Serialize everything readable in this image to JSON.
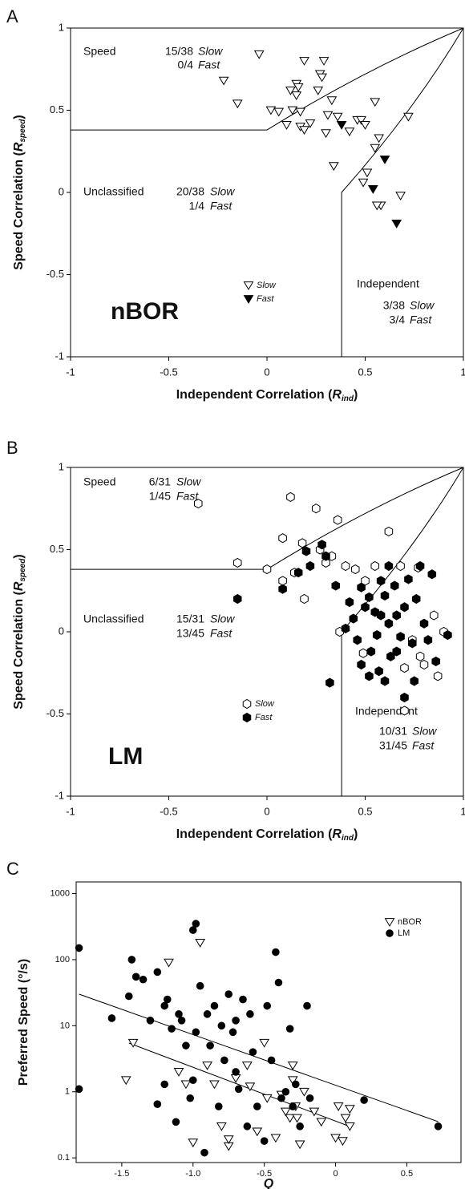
{
  "chart_data": [
    {
      "type": "scatter",
      "panel": "A",
      "label": "nBOR",
      "x_label": {
        "text": "Independent Correlation (",
        "var": "R",
        "sub": "ind",
        "close": ")"
      },
      "y_label": {
        "text": "Speed Correlation (",
        "var": "R",
        "sub": "speed",
        "close": ")"
      },
      "xlim": [
        -1,
        1
      ],
      "ylim": [
        -1,
        1
      ],
      "xticks": [
        -1,
        -0.5,
        0,
        0.5,
        1
      ],
      "yticks": [
        -1,
        -0.5,
        0,
        0.5,
        1
      ],
      "groups": [
        {
          "label": "Speed",
          "counts": [
            "15/38",
            "0/4"
          ]
        },
        {
          "label": "Unclassified",
          "counts": [
            "20/38",
            "1/4"
          ]
        },
        {
          "label": "Independent",
          "counts": [
            "3/38",
            "3/4"
          ]
        }
      ],
      "series": [
        {
          "name": "Slow",
          "marker": "triangle",
          "color": "#ffffff",
          "x": [
            -0.04,
            -0.22,
            -0.15,
            0.02,
            0.06,
            0.1,
            0.12,
            0.15,
            0.16,
            0.15,
            0.13,
            0.17,
            0.19,
            0.17,
            0.19,
            0.22,
            0.27,
            0.28,
            0.29,
            0.26,
            0.31,
            0.33,
            0.36,
            0.3,
            0.34,
            0.42,
            0.46,
            0.48,
            0.5,
            0.55,
            0.55,
            0.57,
            0.51,
            0.49,
            0.58,
            0.56,
            0.68,
            0.72
          ],
          "values": [
            0.84,
            0.68,
            0.54,
            0.5,
            0.49,
            0.41,
            0.62,
            0.66,
            0.64,
            0.59,
            0.5,
            0.49,
            0.8,
            0.4,
            0.38,
            0.42,
            0.72,
            0.7,
            0.8,
            0.62,
            0.47,
            0.56,
            0.46,
            0.36,
            0.16,
            0.37,
            0.44,
            0.44,
            0.41,
            0.55,
            0.27,
            0.33,
            0.12,
            0.06,
            -0.08,
            -0.08,
            -0.02,
            0.46
          ]
        },
        {
          "name": "Fast",
          "marker": "triangle",
          "color": "#000000",
          "x": [
            0.38,
            0.6,
            0.54,
            0.66
          ],
          "values": [
            0.41,
            0.2,
            0.02,
            -0.19
          ]
        }
      ]
    },
    {
      "type": "scatter",
      "panel": "B",
      "label": "LM",
      "x_label": {
        "text": "Independent Correlation (",
        "var": "R",
        "sub": "ind",
        "close": ")"
      },
      "y_label": {
        "text": "Speed Correlation (",
        "var": "R",
        "sub": "speed",
        "close": ")"
      },
      "xlim": [
        -1,
        1
      ],
      "ylim": [
        -1,
        1
      ],
      "xticks": [
        -1,
        -0.5,
        0,
        0.5,
        1
      ],
      "yticks": [
        -1,
        -0.5,
        0,
        0.5,
        1
      ],
      "groups": [
        {
          "label": "Speed",
          "counts": [
            "6/31",
            "1/45"
          ]
        },
        {
          "label": "Unclassified",
          "counts": [
            "15/31",
            "13/45"
          ]
        },
        {
          "label": "Independent",
          "counts": [
            "10/31",
            "31/45"
          ]
        }
      ],
      "series": [
        {
          "name": "Slow",
          "marker": "hexagon",
          "color": "#ffffff",
          "x": [
            -0.35,
            -0.15,
            0,
            0.08,
            0.08,
            0.12,
            0.14,
            0.18,
            0.19,
            0.25,
            0.27,
            0.3,
            0.33,
            0.36,
            0.4,
            0.45,
            0.5,
            0.55,
            0.62,
            0.68,
            0.77,
            0.85,
            0.9,
            0.87,
            0.8,
            0.78,
            0.7,
            0.7,
            0.74,
            0.49,
            0.37
          ],
          "values": [
            0.78,
            0.42,
            0.38,
            0.31,
            0.57,
            0.82,
            0.36,
            0.54,
            0.2,
            0.75,
            0.5,
            0.42,
            0.46,
            0.68,
            0.4,
            0.38,
            0.31,
            0.4,
            0.61,
            0.4,
            0.39,
            0.1,
            0,
            -0.27,
            -0.2,
            -0.15,
            -0.48,
            -0.22,
            -0.05,
            -0.13,
            0
          ]
        },
        {
          "name": "Fast",
          "marker": "hexagon",
          "color": "#000000",
          "x": [
            -0.15,
            0.2,
            0.22,
            0.16,
            0.08,
            0.28,
            0.3,
            0.35,
            0.32,
            0.42,
            0.48,
            0.52,
            0.5,
            0.44,
            0.4,
            0.46,
            0.55,
            0.58,
            0.6,
            0.62,
            0.56,
            0.53,
            0.52,
            0.57,
            0.6,
            0.63,
            0.65,
            0.7,
            0.72,
            0.68,
            0.66,
            0.7,
            0.74,
            0.76,
            0.78,
            0.8,
            0.82,
            0.84,
            0.86,
            0.92,
            0.75,
            0.62,
            0.58,
            0.48,
            0.66
          ],
          "values": [
            0.2,
            0.49,
            0.4,
            0.36,
            0.26,
            0.53,
            0.46,
            0.28,
            -0.31,
            0.18,
            0.27,
            0.21,
            0.15,
            0.08,
            0.02,
            -0.05,
            0.12,
            0.1,
            0.22,
            0.05,
            -0.02,
            -0.12,
            -0.27,
            -0.24,
            -0.3,
            -0.15,
            0.28,
            0.15,
            0.32,
            -0.03,
            -0.12,
            -0.4,
            -0.07,
            0.2,
            0.4,
            0.05,
            -0.05,
            0.35,
            -0.18,
            -0.02,
            -0.3,
            0.4,
            0.31,
            -0.2,
            0.1
          ]
        }
      ]
    },
    {
      "type": "scatter",
      "panel": "C",
      "log_y": true,
      "x_label": {
        "var": "Q"
      },
      "y_label": {
        "text": "Preferred Speed  (°/s)"
      },
      "xlim": [
        -1.82,
        0.88
      ],
      "ylim": [
        0.085,
        1500
      ],
      "xticks": [
        -1.5,
        {
          "value": -1,
          "label": "-1.0"
        },
        -0.5,
        0,
        0.5
      ],
      "yticks": [
        0.1,
        1,
        10,
        100,
        1000
      ],
      "series": [
        {
          "name": "nBOR",
          "marker": "triangle",
          "color": "#ffffff",
          "x": [
            -1.42,
            -1.47,
            -1.17,
            -1.1,
            -1.05,
            -1.0,
            -0.95,
            -0.9,
            -0.85,
            -0.8,
            -0.75,
            -0.75,
            -0.7,
            -0.62,
            -0.6,
            -0.55,
            -0.5,
            -0.48,
            -0.42,
            -0.35,
            -0.32,
            -0.3,
            -0.3,
            -0.28,
            -0.27,
            -0.25,
            -0.22,
            -0.15,
            -0.1,
            0,
            0.02,
            0.05,
            0.07,
            0.1,
            0.1,
            -0.38
          ],
          "values": [
            5.5,
            1.5,
            90,
            2,
            1.3,
            0.17,
            180,
            2.5,
            1.3,
            0.3,
            0.15,
            0.19,
            1.6,
            2.5,
            1.2,
            0.25,
            5.5,
            0.8,
            0.2,
            0.5,
            0.4,
            2.5,
            1.5,
            0.6,
            0.4,
            0.16,
            1,
            0.5,
            0.35,
            0.2,
            0.6,
            0.18,
            0.4,
            0.55,
            0.3,
            0.9
          ]
        },
        {
          "name": "LM",
          "marker": "circle",
          "color": "#000000",
          "x": [
            -1.8,
            -1.8,
            -1.57,
            -1.45,
            -1.43,
            -1.4,
            -1.35,
            -1.3,
            -1.25,
            -1.25,
            -1.2,
            -1.18,
            -1.15,
            -1.1,
            -1.08,
            -1.05,
            -1.02,
            -1,
            -0.98,
            -0.98,
            -0.95,
            -0.9,
            -0.88,
            -0.85,
            -0.82,
            -0.8,
            -0.78,
            -0.75,
            -0.72,
            -0.7,
            -0.68,
            -0.65,
            -0.62,
            -0.6,
            -0.55,
            -0.5,
            -0.48,
            -0.45,
            -0.42,
            -0.4,
            -0.38,
            -0.35,
            -0.32,
            -0.3,
            -0.28,
            -0.25,
            -0.2,
            -0.18,
            -1.2,
            -1.12,
            -0.92,
            0.2,
            0.72,
            -1.0,
            -0.7,
            -0.58
          ],
          "values": [
            150,
            1.1,
            13,
            28,
            100,
            55,
            50,
            12,
            65,
            0.65,
            20,
            25,
            9,
            15,
            12,
            5,
            0.8,
            280,
            350,
            8,
            40,
            15,
            5,
            20,
            0.6,
            10,
            3,
            30,
            8,
            12,
            1.1,
            25,
            0.3,
            15,
            0.6,
            0.18,
            20,
            3,
            130,
            45,
            0.8,
            1,
            9,
            0.6,
            1.3,
            0.3,
            20,
            0.8,
            1.3,
            0.35,
            0.12,
            0.75,
            0.3,
            1.5,
            2,
            4
          ]
        }
      ]
    }
  ]
}
